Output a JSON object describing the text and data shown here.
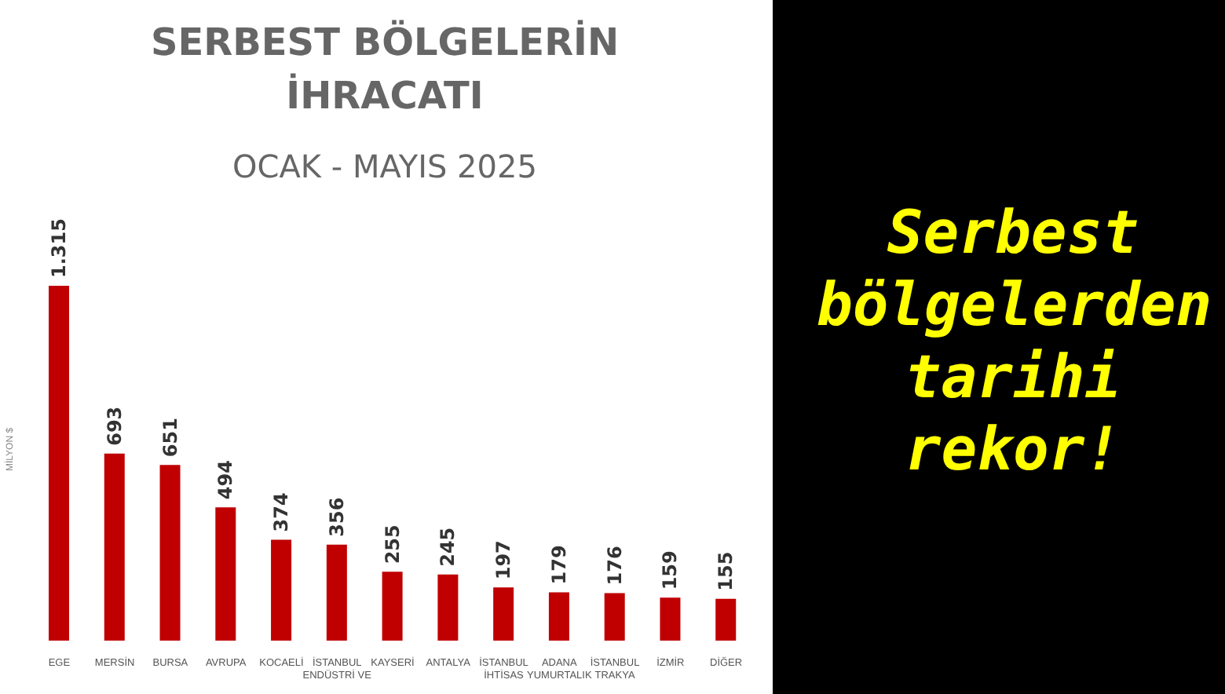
{
  "chart_data": {
    "type": "bar",
    "title": "SERBEST BÖLGELERİN İHRACATI",
    "subtitle": "OCAK - MAYIS 2025",
    "ylabel": "MİLYON $",
    "categories": [
      "EGE",
      "MERSİN",
      "BURSA",
      "AVRUPA",
      "KOCAELİ",
      "İSTANBUL ENDÜSTRİ VE",
      "KAYSERİ",
      "ANTALYA",
      "İSTANBUL İHTİSAS",
      "ADANA YUMURTALIK",
      "İSTANBUL TRAKYA",
      "İZMİR",
      "DİĞER"
    ],
    "values": [
      1315,
      693,
      651,
      494,
      374,
      356,
      255,
      245,
      197,
      179,
      176,
      159,
      155
    ],
    "value_labels": [
      "1.315",
      "693",
      "651",
      "494",
      "374",
      "356",
      "255",
      "245",
      "197",
      "179",
      "176",
      "159",
      "155"
    ],
    "color": "#c00000",
    "grid": false,
    "annotations": [
      "Serbest bölgelerden tarihi rekor!"
    ]
  }
}
